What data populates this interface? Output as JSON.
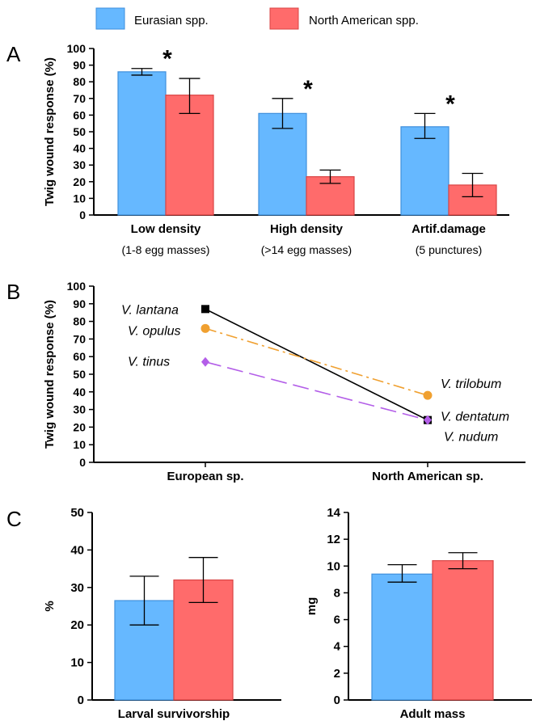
{
  "legend": {
    "items": [
      {
        "label": "Eurasian spp.",
        "color": "#66b8ff"
      },
      {
        "label": "North American spp.",
        "color": "#ff6b6b"
      }
    ]
  },
  "panels": {
    "a": {
      "letter": "A"
    },
    "b": {
      "letter": "B"
    },
    "c": {
      "letter": "C"
    }
  },
  "colors": {
    "eurasian": "#66b8ff",
    "eurasian_stroke": "#3f8fdc",
    "north_american": "#ff6b6b",
    "north_american_stroke": "#d94444",
    "lantana": "#000000",
    "opulus": "#f0a030",
    "tinus": "#b35ee8"
  },
  "chart_data": [
    {
      "id": "A",
      "type": "bar",
      "ylabel": "Twig wound response (%)",
      "ylim": [
        0,
        100
      ],
      "yticks": [
        0,
        10,
        20,
        30,
        40,
        50,
        60,
        70,
        80,
        90,
        100
      ],
      "categories": [
        "Low density",
        "High density",
        "Artif.damage"
      ],
      "sublabels": [
        "(1-8 egg masses)",
        "(>14 egg masses)",
        "(5 punctures)"
      ],
      "series": [
        {
          "name": "Eurasian spp.",
          "values": [
            86,
            61,
            53
          ],
          "err_low": [
            84,
            52,
            46
          ],
          "err_high": [
            88,
            70,
            61
          ]
        },
        {
          "name": "North American spp.",
          "values": [
            72,
            23,
            18
          ],
          "err_low": [
            61,
            19,
            11
          ],
          "err_high": [
            82,
            27,
            25
          ]
        }
      ],
      "annotations": [
        "*",
        "*",
        "*"
      ]
    },
    {
      "id": "B",
      "type": "line",
      "ylabel": "Twig wound response (%)",
      "ylim": [
        0,
        100
      ],
      "yticks": [
        0,
        10,
        20,
        30,
        40,
        50,
        60,
        70,
        80,
        90,
        100
      ],
      "categories": [
        "European sp.",
        "North American sp."
      ],
      "series": [
        {
          "name": "V. lantana",
          "end_label": "V. nudum",
          "values": [
            87,
            24
          ],
          "marker": "square",
          "style": "solid",
          "color_key": "lantana"
        },
        {
          "name": "V. opulus",
          "end_label": "V. trilobum",
          "values": [
            76,
            38
          ],
          "marker": "circle",
          "style": "dashdot",
          "color_key": "opulus"
        },
        {
          "name": "V. tinus",
          "end_label": "V. dentatum",
          "values": [
            57,
            24
          ],
          "marker": "diamond",
          "style": "dashed",
          "color_key": "tinus"
        }
      ]
    },
    {
      "id": "C1",
      "type": "bar",
      "ylabel": "%",
      "xlabel": "Larval survivorship",
      "ylim": [
        0,
        50
      ],
      "yticks": [
        0,
        10,
        20,
        30,
        40,
        50
      ],
      "series": [
        {
          "name": "Eurasian spp.",
          "values": [
            26.5
          ],
          "err_low": [
            20
          ],
          "err_high": [
            33
          ]
        },
        {
          "name": "North American spp.",
          "values": [
            32
          ],
          "err_low": [
            26
          ],
          "err_high": [
            38
          ]
        }
      ]
    },
    {
      "id": "C2",
      "type": "bar",
      "ylabel": "mg",
      "xlabel": "Adult mass",
      "ylim": [
        0,
        14
      ],
      "yticks": [
        0,
        2,
        4,
        6,
        8,
        10,
        12,
        14
      ],
      "series": [
        {
          "name": "Eurasian spp.",
          "values": [
            9.4
          ],
          "err_low": [
            8.8
          ],
          "err_high": [
            10.1
          ]
        },
        {
          "name": "North American spp.",
          "values": [
            10.4
          ],
          "err_low": [
            9.8
          ],
          "err_high": [
            11.0
          ]
        }
      ]
    }
  ]
}
